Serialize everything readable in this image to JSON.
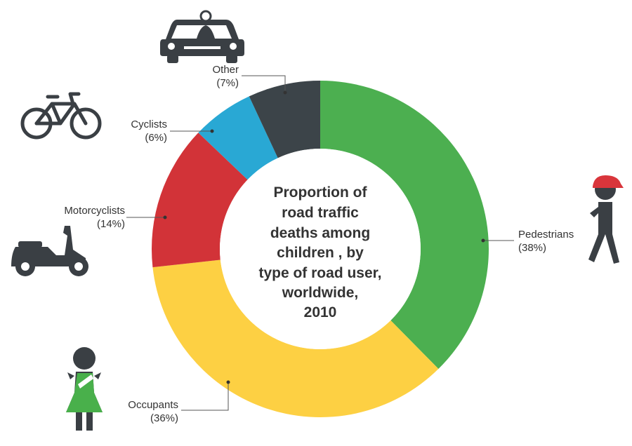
{
  "chart_data": {
    "type": "pie",
    "variant": "donut",
    "title_lines": [
      "Proportion of",
      "road traffic",
      "deaths among",
      "children  , by",
      "type of road user,",
      "worldwide,",
      "2010"
    ],
    "slices": [
      {
        "name": "Pedestrians",
        "pct_label": "(38%)",
        "value": 38,
        "color": "#4caf50",
        "icon": "pedestrian-icon"
      },
      {
        "name": "Occupants",
        "pct_label": "(36%)",
        "value": 36,
        "color": "#fdd043",
        "icon": "occupant-child-icon"
      },
      {
        "name": "Motorcyclists",
        "pct_label": "(14%)",
        "value": 14,
        "color": "#d23338",
        "icon": "scooter-icon"
      },
      {
        "name": "Cyclists",
        "pct_label": "(6%)",
        "value": 6,
        "color": "#29a8d4",
        "icon": "bicycle-icon"
      },
      {
        "name": "Other",
        "pct_label": "(7%)",
        "value": 7,
        "color": "#3c4449",
        "icon": "car-icon"
      }
    ],
    "legend": "none"
  }
}
